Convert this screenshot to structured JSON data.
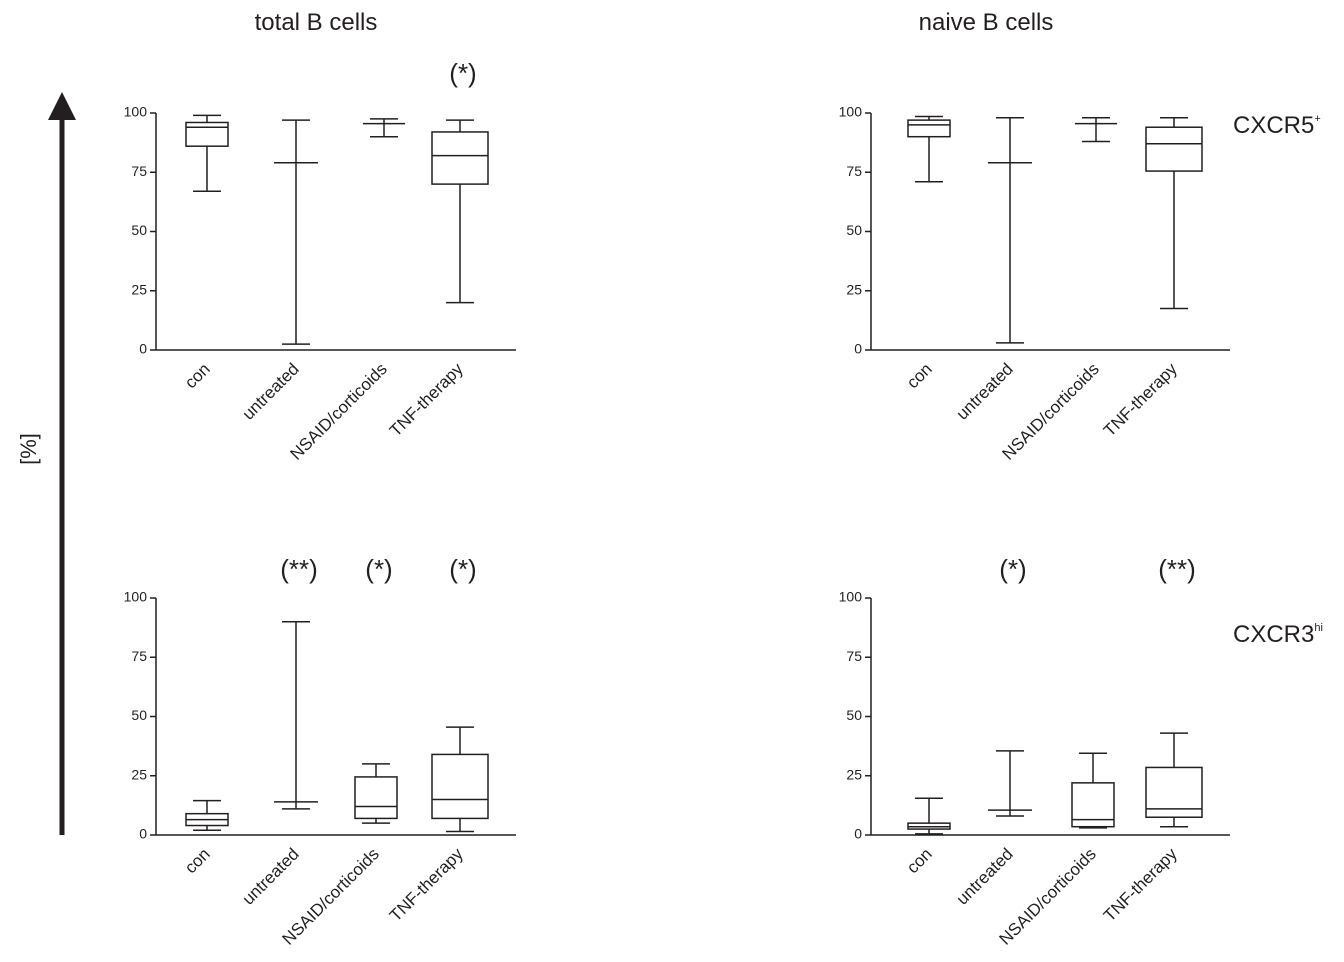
{
  "column_titles": [
    "total B cells",
    "naive B cells"
  ],
  "row_labels": [
    {
      "base": "CXCR5",
      "sup": "+"
    },
    {
      "base": "CXCR3",
      "sup": "hi"
    }
  ],
  "y_axis_label": "[%]",
  "colors": {
    "ink": "#231f20",
    "background": "#ffffff"
  },
  "chart_data": [
    {
      "type": "box",
      "panel": "total B cells / CXCR5+",
      "categories": [
        "con",
        "untreated",
        "NSAID/corticoids",
        "TNF-therapy"
      ],
      "ylim": [
        0,
        100
      ],
      "yticks": [
        0,
        25,
        50,
        75,
        100
      ],
      "boxes": [
        {
          "min": 67,
          "q1": 86,
          "median": 94,
          "q3": 96,
          "max": 99
        },
        {
          "min": 2.5,
          "q1": 79,
          "median": 79,
          "q3": 79,
          "max": 97
        },
        {
          "min": 90,
          "q1": 95.5,
          "median": 95.5,
          "q3": 95.5,
          "max": 97.5
        },
        {
          "min": 20,
          "q1": 70,
          "median": 82,
          "q3": 92,
          "max": 97
        }
      ],
      "significance": [
        "",
        "",
        "",
        "(*)"
      ]
    },
    {
      "type": "box",
      "panel": "naive B cells / CXCR5+",
      "categories": [
        "con",
        "untreated",
        "NSAID/corticoids",
        "TNF-therapy"
      ],
      "ylim": [
        0,
        100
      ],
      "yticks": [
        0,
        25,
        50,
        75,
        100
      ],
      "boxes": [
        {
          "min": 71,
          "q1": 90,
          "median": 95,
          "q3": 97,
          "max": 98.5
        },
        {
          "min": 3,
          "q1": 79,
          "median": 79,
          "q3": 79,
          "max": 98
        },
        {
          "min": 88,
          "q1": 95.5,
          "median": 95.5,
          "q3": 95.5,
          "max": 98
        },
        {
          "min": 17.5,
          "q1": 75.5,
          "median": 87,
          "q3": 94,
          "max": 98
        }
      ],
      "significance": [
        "",
        "",
        "",
        ""
      ]
    },
    {
      "type": "box",
      "panel": "total B cells / CXCR3hi",
      "categories": [
        "con",
        "untreated",
        "NSAID/corticoids",
        "TNF-therapy"
      ],
      "ylim": [
        0,
        100
      ],
      "yticks": [
        0,
        25,
        50,
        75,
        100
      ],
      "boxes": [
        {
          "min": 2,
          "q1": 4,
          "median": 6.5,
          "q3": 9,
          "max": 14.5
        },
        {
          "min": 11,
          "q1": 14,
          "median": 14,
          "q3": 14,
          "max": 90
        },
        {
          "min": 5,
          "q1": 7,
          "median": 12,
          "q3": 24.5,
          "max": 30
        },
        {
          "min": 1.5,
          "q1": 7,
          "median": 15,
          "q3": 34,
          "max": 45.5
        }
      ],
      "significance": [
        "",
        "(**)",
        "(*)",
        "(*)"
      ]
    },
    {
      "type": "box",
      "panel": "naive B cells / CXCR3hi",
      "categories": [
        "con",
        "untreated",
        "NSAID/corticoids",
        "TNF-therapy"
      ],
      "ylim": [
        0,
        100
      ],
      "yticks": [
        0,
        25,
        50,
        75,
        100
      ],
      "boxes": [
        {
          "min": 0.5,
          "q1": 2.5,
          "median": 3.5,
          "q3": 5,
          "max": 15.5
        },
        {
          "min": 8,
          "q1": 10.5,
          "median": 10.5,
          "q3": 10.5,
          "max": 35.5
        },
        {
          "min": 3,
          "q1": 3.5,
          "median": 6.5,
          "q3": 22,
          "max": 34.5
        },
        {
          "min": 3.5,
          "q1": 7.5,
          "median": 11,
          "q3": 28.5,
          "max": 43
        }
      ],
      "significance": [
        "",
        "(*)",
        "",
        "(**)"
      ]
    }
  ]
}
